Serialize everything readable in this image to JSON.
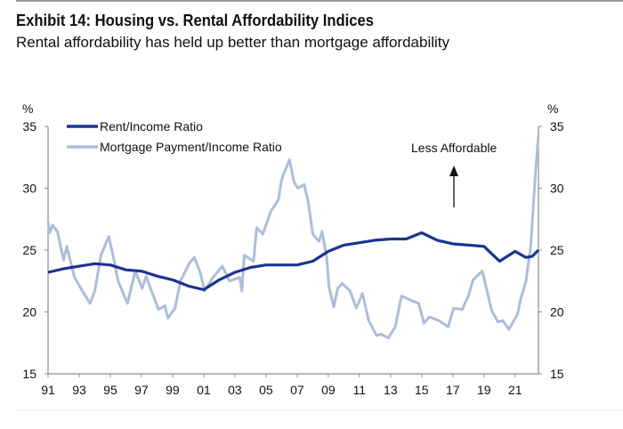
{
  "title": "Exhibit 14: Housing vs. Rental Affordability Indices",
  "subtitle": "Rental affordability has held up better than mortgage affordability",
  "chart_data": {
    "type": "line",
    "title": "Exhibit 14: Housing vs. Rental Affordability Indices",
    "subtitle": "Rental affordability has held up better than mortgage affordability",
    "xlabel": "",
    "ylabel_left": "%",
    "ylabel_right": "%",
    "xlim": [
      1991,
      2022.5
    ],
    "ylim": [
      15,
      35
    ],
    "yticks": [
      15,
      20,
      25,
      30,
      35
    ],
    "xtick_labels": [
      "91",
      "93",
      "95",
      "97",
      "99",
      "01",
      "03",
      "05",
      "07",
      "09",
      "11",
      "13",
      "15",
      "17",
      "19",
      "21"
    ],
    "xtick_years": [
      1991,
      1993,
      1995,
      1997,
      1999,
      2001,
      2003,
      2005,
      2007,
      2009,
      2011,
      2013,
      2015,
      2017,
      2019,
      2021
    ],
    "grid": false,
    "legend_position": "top-left",
    "annotation": {
      "text": "Less Affordable",
      "arrow": "up"
    },
    "series": [
      {
        "name": "Rent/Income Ratio",
        "color": "#1a3591",
        "x": [
          1991,
          1992,
          1993,
          1994,
          1995,
          1996,
          1997,
          1998,
          1999,
          2000,
          2001,
          2002,
          2003,
          2004,
          2005,
          2006,
          2007,
          2008,
          2009,
          2010,
          2011,
          2012,
          2013,
          2014,
          2015,
          2016,
          2017,
          2018,
          2019,
          2020,
          2021,
          2021.7,
          2022.1,
          2022.5
        ],
        "y": [
          23.2,
          23.5,
          23.7,
          23.9,
          23.8,
          23.4,
          23.3,
          22.9,
          22.6,
          22.1,
          21.8,
          22.6,
          23.2,
          23.6,
          23.8,
          23.8,
          23.8,
          24.1,
          24.9,
          25.4,
          25.6,
          25.8,
          25.9,
          25.9,
          26.4,
          25.8,
          25.5,
          25.4,
          25.3,
          24.1,
          24.9,
          24.4,
          24.5,
          25.0
        ]
      },
      {
        "name": "Mortgage Payment/Income Ratio",
        "color": "#aebcdc",
        "x": [
          1991,
          1991.1,
          1991.3,
          1991.6,
          1992.0,
          1992.2,
          1992.7,
          1993.3,
          1993.7,
          1994.0,
          1994.4,
          1994.9,
          1995.2,
          1995.5,
          1996.1,
          1996.6,
          1997.05,
          1997.3,
          1997.7,
          1998.1,
          1998.5,
          1998.7,
          1999.15,
          1999.5,
          2000.1,
          2000.4,
          2000.8,
          2001.05,
          2001.6,
          2002.2,
          2002.65,
          2003.3,
          2003.45,
          2003.6,
          2004.2,
          2004.4,
          2004.8,
          2005.3,
          2005.8,
          2006.0,
          2006.5,
          2006.8,
          2007.05,
          2007.45,
          2007.7,
          2008.0,
          2008.4,
          2008.6,
          2008.9,
          2009.05,
          2009.35,
          2009.6,
          2009.9,
          2010.4,
          2010.8,
          2011.2,
          2011.6,
          2012.1,
          2012.4,
          2012.85,
          2013.3,
          2013.7,
          2014.2,
          2014.8,
          2015.15,
          2015.5,
          2016.1,
          2016.7,
          2017.05,
          2017.6,
          2018.0,
          2018.3,
          2018.9,
          2019.5,
          2019.9,
          2020.2,
          2020.6,
          2021.15,
          2021.35,
          2021.7,
          2022.0,
          2022.3,
          2022.5
        ],
        "y": [
          27.3,
          26.4,
          27.0,
          26.5,
          24.2,
          25.3,
          22.8,
          21.5,
          20.7,
          21.7,
          24.6,
          26.1,
          24.4,
          22.5,
          20.7,
          23.3,
          21.9,
          22.9,
          21.5,
          20.2,
          20.5,
          19.5,
          20.3,
          22.5,
          24.0,
          24.4,
          23.1,
          21.7,
          22.8,
          23.7,
          22.5,
          22.8,
          21.7,
          24.6,
          24.1,
          26.8,
          26.3,
          28.1,
          29.1,
          30.7,
          32.3,
          30.5,
          30.0,
          30.3,
          29.0,
          26.3,
          25.7,
          26.5,
          24.4,
          22.0,
          20.4,
          21.9,
          22.3,
          21.7,
          20.3,
          21.5,
          19.3,
          18.1,
          18.2,
          17.9,
          18.8,
          21.3,
          21.0,
          20.7,
          19.1,
          19.6,
          19.3,
          18.8,
          20.3,
          20.2,
          21.3,
          22.6,
          23.3,
          20.1,
          19.2,
          19.3,
          18.6,
          19.8,
          21.0,
          22.5,
          25.3,
          31.1,
          34.3
        ]
      }
    ]
  }
}
